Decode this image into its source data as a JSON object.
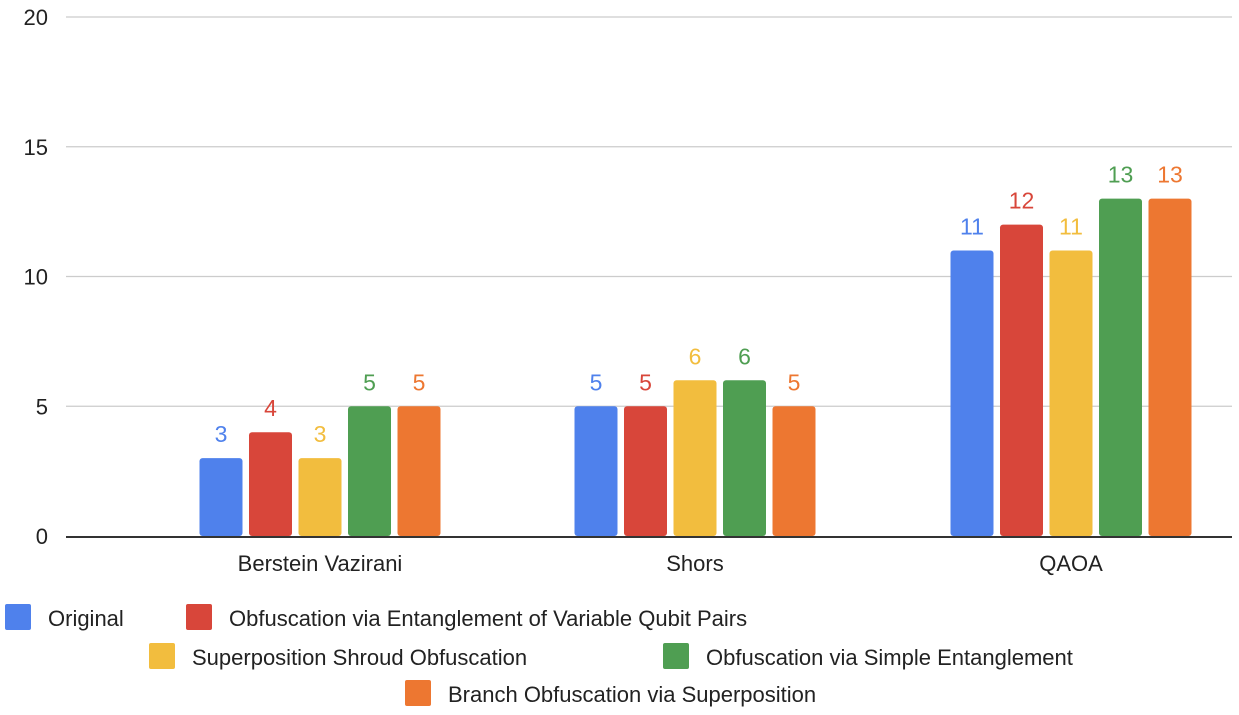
{
  "chart_data": {
    "type": "bar",
    "title": "",
    "xlabel": "",
    "ylabel": "",
    "ylim": [
      0,
      20
    ],
    "yticks": [
      0,
      5,
      10,
      15,
      20
    ],
    "grid": true,
    "legend_position": "bottom",
    "categories": [
      "Berstein Vazirani",
      "Shors",
      "QAOA"
    ],
    "series": [
      {
        "name": "Original",
        "color": "#4f81ec",
        "values": [
          3,
          5,
          11
        ]
      },
      {
        "name": "Obfuscation via Entanglement of Variable Qubit Pairs",
        "color": "#d8463a",
        "values": [
          4,
          5,
          12
        ]
      },
      {
        "name": "Superposition Shroud Obfuscation",
        "color": "#f2bd3e",
        "values": [
          3,
          6,
          11
        ]
      },
      {
        "name": "Obfuscation via Simple Entanglement",
        "color": "#4f9e52",
        "values": [
          5,
          6,
          13
        ]
      },
      {
        "name": "Branch Obfuscation via Superposition",
        "color": "#ed7731",
        "values": [
          5,
          5,
          13
        ]
      }
    ]
  }
}
